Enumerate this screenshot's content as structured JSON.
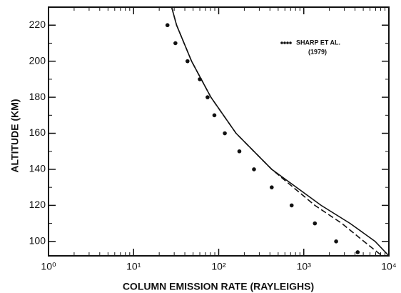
{
  "chart_data": {
    "type": "line",
    "x_label": "COLUMN EMISSION RATE (RAYLEIGHS)",
    "y_label": "ALTITUDE (KM)",
    "xscale": "log",
    "xlim": [
      1,
      10000
    ],
    "xticks": [
      {
        "value": 1,
        "label": "10⁰"
      },
      {
        "value": 10,
        "label": "10¹"
      },
      {
        "value": 100,
        "label": "10²"
      },
      {
        "value": 1000,
        "label": "10³"
      },
      {
        "value": 10000,
        "label": "10⁴"
      }
    ],
    "ylim": [
      92,
      230
    ],
    "yticks": [
      100,
      120,
      140,
      160,
      180,
      200,
      220
    ],
    "series": [
      {
        "style": "solid",
        "color": "#111111",
        "x": [
          28,
          32,
          48,
          81,
          160,
          420,
          1600,
          3500,
          6900,
          10000
        ],
        "y": [
          230,
          220,
          200,
          180,
          160,
          140,
          120,
          110,
          100,
          92
        ]
      },
      {
        "style": "dashed",
        "color": "#111111",
        "x": [
          28,
          32,
          48,
          81,
          160,
          420,
          1350,
          2800,
          5100,
          8300
        ],
        "y": [
          230,
          220,
          200,
          180,
          160,
          140,
          120,
          110,
          100,
          92
        ]
      },
      {
        "style": "dots",
        "color": "#111111",
        "name": "SHARP ET AL.",
        "note": "(1979)",
        "x": [
          25,
          31,
          43,
          60,
          74,
          89,
          118,
          175,
          260,
          420,
          720,
          1350,
          2400,
          4300
        ],
        "y": [
          220,
          210,
          200,
          190,
          180,
          170,
          160,
          150,
          140,
          130,
          120,
          110,
          100,
          94
        ]
      }
    ]
  }
}
